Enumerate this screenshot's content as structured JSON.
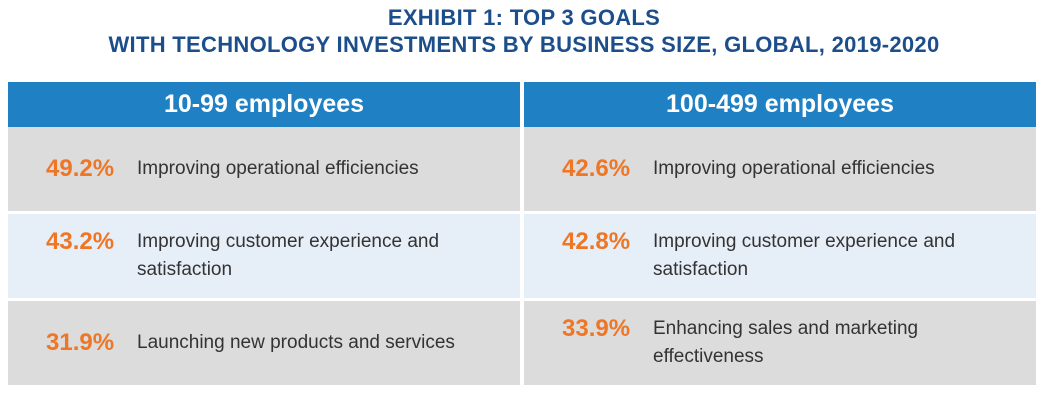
{
  "exhibit": {
    "title_line1": "EXHIBIT 1: TOP 3 GOALS",
    "title_line2": "WITH TECHNOLOGY INVESTMENTS BY BUSINESS SIZE, GLOBAL, 2019-2020"
  },
  "colors": {
    "title": "#1d4e8c",
    "header": "#1f81c4",
    "percent": "#ef7625",
    "row_gray": "#dcdcdc",
    "row_blue": "#e6eef7"
  },
  "chart_data": {
    "type": "table",
    "title": "EXHIBIT 1: TOP 3 GOALS WITH TECHNOLOGY INVESTMENTS BY BUSINESS SIZE, GLOBAL, 2019-2020",
    "columns": [
      {
        "header": "10-99 employees",
        "rows": [
          {
            "percent": "49.2%",
            "value": 49.2,
            "goal": "Improving operational efficiencies"
          },
          {
            "percent": "43.2%",
            "value": 43.2,
            "goal": "Improving customer experience and satisfaction"
          },
          {
            "percent": "31.9%",
            "value": 31.9,
            "goal": "Launching new products and services"
          }
        ]
      },
      {
        "header": "100-499 employees",
        "rows": [
          {
            "percent": "42.6%",
            "value": 42.6,
            "goal": "Improving operational efficiencies"
          },
          {
            "percent": "42.8%",
            "value": 42.8,
            "goal": "Improving customer experience and satisfaction"
          },
          {
            "percent": "33.9%",
            "value": 33.9,
            "goal": "Enhancing sales and marketing effectiveness"
          }
        ]
      }
    ]
  }
}
